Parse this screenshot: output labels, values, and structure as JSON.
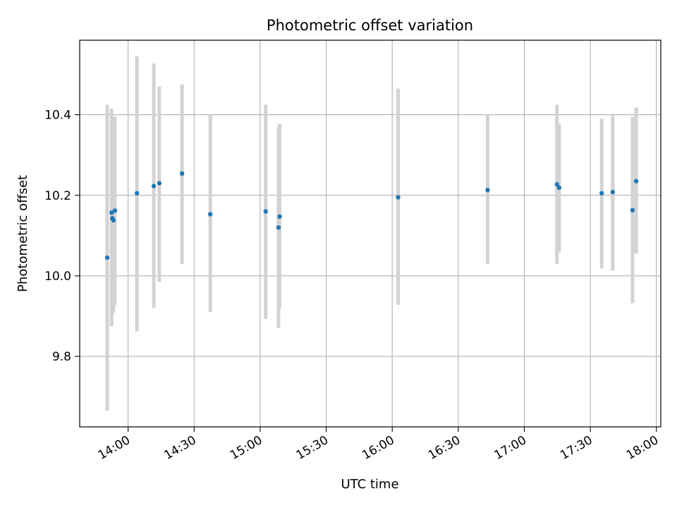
{
  "chart_data": {
    "type": "scatter",
    "title": "Photometric offset variation",
    "xlabel": "UTC time",
    "ylabel": "Photometric offset",
    "grid": true,
    "xlim": [
      "13:38",
      "18:02"
    ],
    "ylim": [
      9.625,
      10.585
    ],
    "x_ticks": [
      "14:00",
      "14:30",
      "15:00",
      "15:30",
      "16:00",
      "16:30",
      "17:00",
      "17:30",
      "18:00"
    ],
    "y_ticks": [
      9.8,
      10.0,
      10.2,
      10.4
    ],
    "colors": {
      "points": "#1f77b4",
      "error_bars": "#d3d3d3",
      "grid": "#b0b0b0"
    },
    "series": [
      {
        "points": [
          {
            "x": "13:50:30",
            "y": 10.045,
            "err_low": 9.665,
            "err_high": 10.425
          },
          {
            "x": "13:52:30",
            "y": 10.157,
            "err_low": 9.875,
            "err_high": 10.415
          },
          {
            "x": "13:52:50",
            "y": 10.143,
            "err_low": 9.905,
            "err_high": 10.372
          },
          {
            "x": "13:53:20",
            "y": 10.138,
            "err_low": 9.91,
            "err_high": 10.39
          },
          {
            "x": "13:54:00",
            "y": 10.162,
            "err_low": 9.928,
            "err_high": 10.395
          },
          {
            "x": "14:04:00",
            "y": 10.205,
            "err_low": 9.862,
            "err_high": 10.545
          },
          {
            "x": "14:11:40",
            "y": 10.223,
            "err_low": 9.92,
            "err_high": 10.527
          },
          {
            "x": "14:14:10",
            "y": 10.23,
            "err_low": 9.985,
            "err_high": 10.47
          },
          {
            "x": "14:24:30",
            "y": 10.254,
            "err_low": 10.03,
            "err_high": 10.475
          },
          {
            "x": "14:37:20",
            "y": 10.153,
            "err_low": 9.91,
            "err_high": 10.4
          },
          {
            "x": "15:02:30",
            "y": 10.16,
            "err_low": 9.893,
            "err_high": 10.425
          },
          {
            "x": "15:08:20",
            "y": 10.12,
            "err_low": 9.87,
            "err_high": 10.37
          },
          {
            "x": "15:08:50",
            "y": 10.147,
            "err_low": 9.92,
            "err_high": 10.377
          },
          {
            "x": "16:02:40",
            "y": 10.195,
            "err_low": 9.928,
            "err_high": 10.465
          },
          {
            "x": "16:43:20",
            "y": 10.213,
            "err_low": 10.03,
            "err_high": 10.4
          },
          {
            "x": "17:14:50",
            "y": 10.227,
            "err_low": 10.03,
            "err_high": 10.425
          },
          {
            "x": "17:15:50",
            "y": 10.219,
            "err_low": 10.058,
            "err_high": 10.378
          },
          {
            "x": "17:35:10",
            "y": 10.205,
            "err_low": 10.018,
            "err_high": 10.39
          },
          {
            "x": "17:40:10",
            "y": 10.208,
            "err_low": 10.013,
            "err_high": 10.403
          },
          {
            "x": "17:49:10",
            "y": 10.163,
            "err_low": 9.932,
            "err_high": 10.395
          },
          {
            "x": "17:50:50",
            "y": 10.235,
            "err_low": 10.055,
            "err_high": 10.418
          }
        ]
      }
    ]
  }
}
